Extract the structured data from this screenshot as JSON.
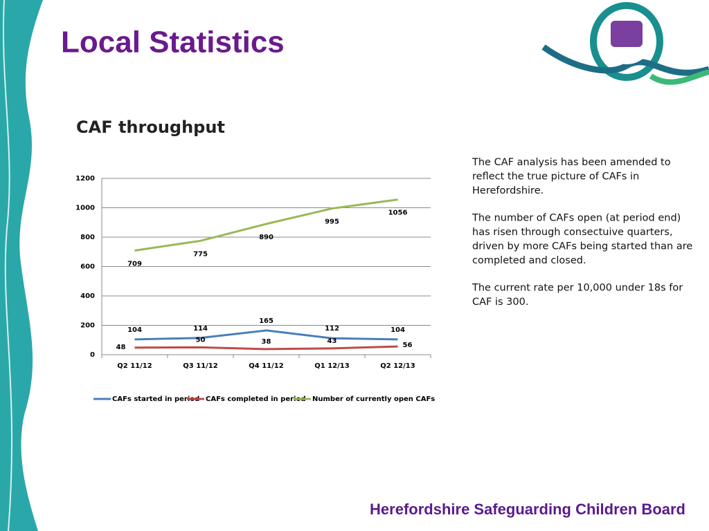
{
  "slide_title": "Local Statistics",
  "notes": [
    [
      "The CAF analysis has been amended to",
      "reflect the true picture of CAFs in",
      "Herefordshire."
    ],
    [
      "The number of CAFs open (at period end)",
      "has risen through consectuive quarters,",
      "driven by more CAFs being started than are",
      "completed and closed."
    ],
    [
      "The current rate per 10,000 under 18s for",
      "CAF is 300."
    ]
  ],
  "footer": "Herefordshire Safeguarding Children Board",
  "chart_data": {
    "type": "line",
    "title": "CAF throughput",
    "categories": [
      "Q2 11/12",
      "Q3 11/12",
      "Q4 11/12",
      "Q1 12/13",
      "Q2 12/13"
    ],
    "series": [
      {
        "name": "CAFs started in period",
        "color": "#4a7ebb",
        "values": [
          104,
          114,
          165,
          112,
          104
        ]
      },
      {
        "name": "CAFs completed in period",
        "color": "#be4b48",
        "values": [
          48,
          50,
          38,
          43,
          56
        ]
      },
      {
        "name": "Number of currently open CAFs",
        "color": "#98b954",
        "values": [
          709,
          775,
          890,
          995,
          1056
        ]
      }
    ],
    "ylim": [
      0,
      1200
    ],
    "yticks": [
      0,
      200,
      400,
      600,
      800,
      1000,
      1200
    ],
    "grid": true,
    "legend": "bottom"
  }
}
